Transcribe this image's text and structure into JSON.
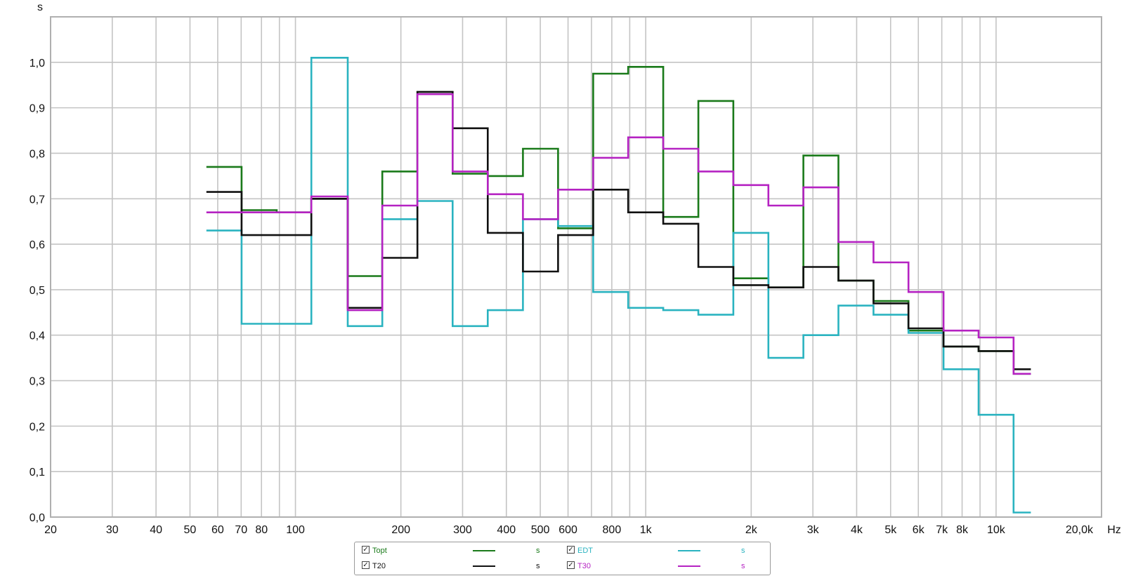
{
  "chart_data": {
    "type": "line",
    "step": true,
    "ylabel": "s",
    "xlabel": "Hz",
    "xscale": "log",
    "xlim": [
      20,
      20000
    ],
    "ylim": [
      0.0,
      1.1
    ],
    "grid": true,
    "legend_position": "bottom-center",
    "y_ticks": [
      {
        "v": 0.0,
        "label": "0,0"
      },
      {
        "v": 0.1,
        "label": "0,1"
      },
      {
        "v": 0.2,
        "label": "0,2"
      },
      {
        "v": 0.3,
        "label": "0,3"
      },
      {
        "v": 0.4,
        "label": "0,4"
      },
      {
        "v": 0.5,
        "label": "0,5"
      },
      {
        "v": 0.6,
        "label": "0,6"
      },
      {
        "v": 0.7,
        "label": "0,7"
      },
      {
        "v": 0.8,
        "label": "0,8"
      },
      {
        "v": 0.9,
        "label": "0,9"
      },
      {
        "v": 1.0,
        "label": "1,0"
      }
    ],
    "x_ticks": [
      {
        "v": 20,
        "label": "20"
      },
      {
        "v": 30,
        "label": "30"
      },
      {
        "v": 40,
        "label": "40"
      },
      {
        "v": 50,
        "label": "50"
      },
      {
        "v": 60,
        "label": "60"
      },
      {
        "v": 70,
        "label": "70"
      },
      {
        "v": 80,
        "label": "80"
      },
      {
        "v": 100,
        "label": "100"
      },
      {
        "v": 200,
        "label": "200"
      },
      {
        "v": 300,
        "label": "300"
      },
      {
        "v": 400,
        "label": "400"
      },
      {
        "v": 500,
        "label": "500"
      },
      {
        "v": 600,
        "label": "600"
      },
      {
        "v": 800,
        "label": "800"
      },
      {
        "v": 1000,
        "label": "1k"
      },
      {
        "v": 2000,
        "label": "2k"
      },
      {
        "v": 3000,
        "label": "3k"
      },
      {
        "v": 4000,
        "label": "4k"
      },
      {
        "v": 5000,
        "label": "5k"
      },
      {
        "v": 6000,
        "label": "6k"
      },
      {
        "v": 7000,
        "label": "7k"
      },
      {
        "v": 8000,
        "label": "8k"
      },
      {
        "v": 10000,
        "label": "10k"
      },
      {
        "v": 20000,
        "label": "20,0k"
      }
    ],
    "x_gridlines": [
      20,
      30,
      40,
      50,
      60,
      70,
      80,
      90,
      100,
      200,
      300,
      400,
      500,
      600,
      700,
      800,
      900,
      1000,
      2000,
      3000,
      4000,
      5000,
      6000,
      7000,
      8000,
      9000,
      10000,
      20000
    ],
    "band_edges": [
      55.7,
      70.2,
      88.4,
      111,
      141,
      177,
      223,
      281,
      354,
      446,
      562,
      708,
      891,
      1122,
      1413,
      1778,
      2239,
      2818,
      3548,
      4467,
      5623,
      7079,
      8913,
      11220
    ],
    "series": [
      {
        "name": "Topt",
        "color": "#1a7a1a",
        "values": [
          0.77,
          0.675,
          0.67,
          0.7,
          0.53,
          0.76,
          0.935,
          0.755,
          0.75,
          0.81,
          0.635,
          0.975,
          0.99,
          0.66,
          0.915,
          0.525,
          0.505,
          0.795,
          0.52,
          0.475,
          0.41,
          0.375,
          0.365,
          0.315
        ]
      },
      {
        "name": "EDT",
        "color": "#2ab3c0",
        "values": [
          0.63,
          0.425,
          0.425,
          1.01,
          0.42,
          0.655,
          0.695,
          0.42,
          0.455,
          0.655,
          0.64,
          0.495,
          0.46,
          0.455,
          0.445,
          0.625,
          0.35,
          0.4,
          0.465,
          0.445,
          0.405,
          0.325,
          0.225,
          0.01
        ]
      },
      {
        "name": "T20",
        "color": "#111111",
        "values": [
          0.715,
          0.62,
          0.62,
          0.7,
          0.46,
          0.57,
          0.935,
          0.855,
          0.625,
          0.54,
          0.62,
          0.72,
          0.67,
          0.645,
          0.55,
          0.51,
          0.505,
          0.55,
          0.52,
          0.47,
          0.415,
          0.375,
          0.365,
          0.325
        ]
      },
      {
        "name": "T30",
        "color": "#b522c2",
        "values": [
          0.67,
          0.67,
          0.67,
          0.705,
          0.455,
          0.685,
          0.93,
          0.76,
          0.71,
          0.655,
          0.72,
          0.79,
          0.835,
          0.81,
          0.76,
          0.73,
          0.685,
          0.725,
          0.605,
          0.56,
          0.495,
          0.41,
          0.395,
          0.315
        ]
      }
    ]
  },
  "legend": {
    "items": [
      {
        "name": "Topt",
        "unit": "s",
        "color": "#1a7a1a",
        "check": "✓"
      },
      {
        "name": "EDT",
        "unit": "s",
        "color": "#2ab3c0",
        "check": "✓"
      },
      {
        "name": "T20",
        "unit": "s",
        "color": "#111111",
        "check": "✓"
      },
      {
        "name": "T30",
        "unit": "s",
        "color": "#b522c2",
        "check": "✓"
      }
    ]
  }
}
